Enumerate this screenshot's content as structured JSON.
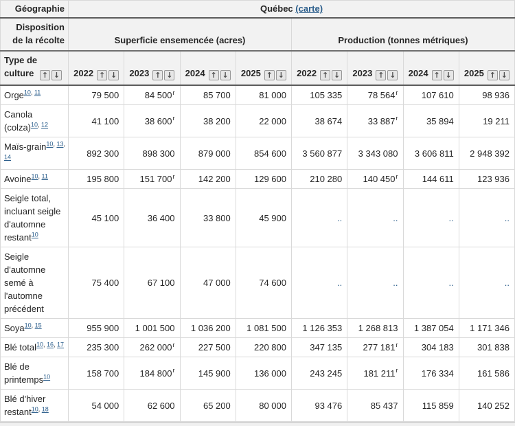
{
  "header": {
    "geography_label": "Géographie",
    "geography_value": "Québec",
    "map_link": "(carte)",
    "disposition_label": "Disposition de la récolte",
    "area_group_label": "Superficie ensemencée (acres)",
    "production_group_label": "Production (tonnes métriques)",
    "crop_type_label": "Type de culture",
    "years": [
      "2022",
      "2023",
      "2024",
      "2025"
    ]
  },
  "icons": {
    "sort_asc": "↑",
    "sort_desc": "↓"
  },
  "colors": {
    "link": "#2a5d8b",
    "header_bg": "#f2f2f2",
    "dark_rule": "#5b5b5b",
    "cell_border": "#d9d9d9"
  },
  "rows": [
    {
      "label": "Orge",
      "footnotes": [
        "10",
        "11"
      ],
      "cells": [
        {
          "v": "79 500"
        },
        {
          "v": "84 500",
          "f": "r"
        },
        {
          "v": "85 700"
        },
        {
          "v": "81 000"
        },
        {
          "v": "105 335"
        },
        {
          "v": "78 564",
          "f": "r"
        },
        {
          "v": "107 610"
        },
        {
          "v": "98 936"
        }
      ]
    },
    {
      "label": "Canola (colza)",
      "footnotes": [
        "10",
        "12"
      ],
      "cells": [
        {
          "v": "41 100"
        },
        {
          "v": "38 600",
          "f": "r"
        },
        {
          "v": "38 200"
        },
        {
          "v": "22 000"
        },
        {
          "v": "38 674"
        },
        {
          "v": "33 887",
          "f": "r"
        },
        {
          "v": "35 894"
        },
        {
          "v": "19 211"
        }
      ]
    },
    {
      "label": "Maïs-grain",
      "footnotes": [
        "10",
        "13",
        "14"
      ],
      "cells": [
        {
          "v": "892 300"
        },
        {
          "v": "898 300"
        },
        {
          "v": "879 000"
        },
        {
          "v": "854 600"
        },
        {
          "v": "3 560 877"
        },
        {
          "v": "3 343 080"
        },
        {
          "v": "3 606 811"
        },
        {
          "v": "2 948 392"
        }
      ]
    },
    {
      "label": "Avoine",
      "footnotes": [
        "10",
        "11"
      ],
      "cells": [
        {
          "v": "195 800"
        },
        {
          "v": "151 700",
          "f": "r"
        },
        {
          "v": "142 200"
        },
        {
          "v": "129 600"
        },
        {
          "v": "210 280"
        },
        {
          "v": "140 450",
          "f": "r"
        },
        {
          "v": "144 611"
        },
        {
          "v": "123 936"
        }
      ]
    },
    {
      "label": "Seigle total, incluant seigle d'automne restant",
      "footnotes": [
        "10"
      ],
      "cells": [
        {
          "v": "45 100"
        },
        {
          "v": "36 400"
        },
        {
          "v": "33 800"
        },
        {
          "v": "45 900"
        },
        {
          "v": "..",
          "na": true
        },
        {
          "v": "..",
          "na": true
        },
        {
          "v": "..",
          "na": true
        },
        {
          "v": "..",
          "na": true
        }
      ]
    },
    {
      "label": "Seigle d'automne semé à l'automne précédent",
      "footnotes": [],
      "cells": [
        {
          "v": "75 400"
        },
        {
          "v": "67 100"
        },
        {
          "v": "47 000"
        },
        {
          "v": "74 600"
        },
        {
          "v": "..",
          "na": true
        },
        {
          "v": "..",
          "na": true
        },
        {
          "v": "..",
          "na": true
        },
        {
          "v": "..",
          "na": true
        }
      ]
    },
    {
      "label": "Soya",
      "footnotes": [
        "10",
        "15"
      ],
      "cells": [
        {
          "v": "955 900"
        },
        {
          "v": "1 001 500"
        },
        {
          "v": "1 036 200"
        },
        {
          "v": "1 081 500"
        },
        {
          "v": "1 126 353"
        },
        {
          "v": "1 268 813"
        },
        {
          "v": "1 387 054"
        },
        {
          "v": "1 171 346"
        }
      ]
    },
    {
      "label": "Blé total",
      "footnotes": [
        "10",
        "16",
        "17"
      ],
      "cells": [
        {
          "v": "235 300"
        },
        {
          "v": "262 000",
          "f": "r"
        },
        {
          "v": "227 500"
        },
        {
          "v": "220 800"
        },
        {
          "v": "347 135"
        },
        {
          "v": "277 181",
          "f": "r"
        },
        {
          "v": "304 183"
        },
        {
          "v": "301 838"
        }
      ]
    },
    {
      "label": "Blé de printemps",
      "footnotes": [
        "10"
      ],
      "cells": [
        {
          "v": "158 700"
        },
        {
          "v": "184 800",
          "f": "r"
        },
        {
          "v": "145 900"
        },
        {
          "v": "136 000"
        },
        {
          "v": "243 245"
        },
        {
          "v": "181 211",
          "f": "r"
        },
        {
          "v": "176 334"
        },
        {
          "v": "161 586"
        }
      ]
    },
    {
      "label": "Blé d'hiver restant",
      "footnotes": [
        "10",
        "18"
      ],
      "cells": [
        {
          "v": "54 000"
        },
        {
          "v": "62 600"
        },
        {
          "v": "65 200"
        },
        {
          "v": "80 000"
        },
        {
          "v": "93 476"
        },
        {
          "v": "85 437"
        },
        {
          "v": "115 859"
        },
        {
          "v": "140 252"
        }
      ]
    }
  ]
}
